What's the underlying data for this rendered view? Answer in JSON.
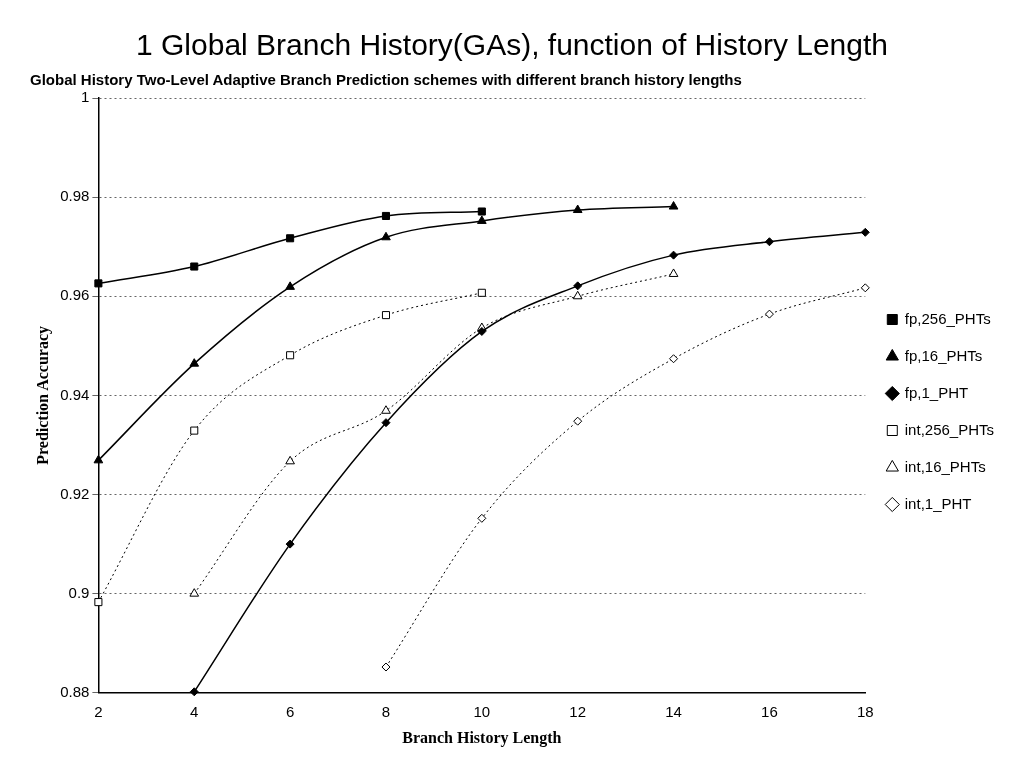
{
  "chart_data": {
    "type": "line",
    "title": "1 Global Branch History(GAs), function of History Length",
    "subtitle": "Global History Two-Level Adaptive Branch Prediction schemes with different branch history lengths",
    "xlabel": "Branch History Length",
    "ylabel": "Prediction Accuracy",
    "xlim": [
      2,
      18
    ],
    "xticks": [
      2,
      4,
      6,
      8,
      10,
      12,
      14,
      16,
      18
    ],
    "ylim": [
      0.88,
      1
    ],
    "yticks": [
      0.88,
      0.9,
      0.92,
      0.94,
      0.96,
      0.98,
      1
    ],
    "grid": "y",
    "legend": "right",
    "series": [
      {
        "name": "fp,256_PHTs",
        "color": "#000000",
        "marker": "square",
        "line_style": "solid",
        "x": [
          2,
          4,
          6,
          8,
          10
        ],
        "values": [
          0.9626,
          0.966,
          0.9717,
          0.9762,
          0.9771
        ]
      },
      {
        "name": "fp,16_PHTs",
        "color": "#000000",
        "marker": "triangle",
        "line_style": "solid",
        "x": [
          2,
          4,
          6,
          8,
          10,
          12,
          14
        ],
        "values": [
          0.9269,
          0.9464,
          0.9619,
          0.9719,
          0.9752,
          0.9774,
          0.9781
        ]
      },
      {
        "name": "fp,1_PHT",
        "color": "#000000",
        "marker": "diamond",
        "line_style": "solid",
        "x": [
          4,
          6,
          8,
          10,
          12,
          14,
          16,
          18
        ],
        "values": [
          0.8802,
          0.91,
          0.9345,
          0.9529,
          0.9621,
          0.9683,
          0.971,
          0.9729
        ]
      },
      {
        "name": "int,256_PHTs",
        "color": "#000000",
        "marker": "square",
        "line_style": "dotted",
        "x": [
          2,
          4,
          6,
          8,
          10
        ],
        "values": [
          0.8983,
          0.9329,
          0.9481,
          0.9562,
          0.9607
        ]
      },
      {
        "name": "int,16_PHTs",
        "color": "#000000",
        "marker": "triangle",
        "line_style": "dotted",
        "x": [
          4,
          6,
          8,
          10,
          12,
          14
        ],
        "values": [
          0.9,
          0.9267,
          0.9369,
          0.9536,
          0.96,
          0.9645
        ]
      },
      {
        "name": "int,1_PHT",
        "color": "#000000",
        "marker": "diamond",
        "line_style": "dotted",
        "x": [
          8,
          10,
          12,
          14,
          16,
          18
        ],
        "values": [
          0.8852,
          0.9152,
          0.9348,
          0.9474,
          0.9564,
          0.9617
        ]
      }
    ]
  }
}
